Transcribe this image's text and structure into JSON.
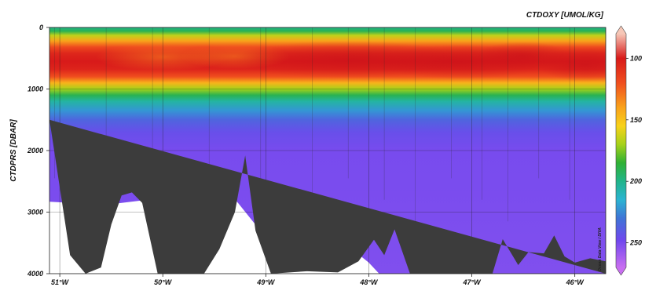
{
  "chart_data": {
    "type": "heatmap",
    "title": "",
    "ylabel": "CTDPRS [DBAR]",
    "xlabel": "",
    "colorbar_label": "CTDOXY [UMOL/KG]",
    "credit": "Ocean Data View / DIVA",
    "x_unit": "longitude (°W)",
    "xlim": [
      51.1,
      45.7
    ],
    "ylim": [
      4000,
      0
    ],
    "y_inverted": true,
    "grid": true,
    "x_ticks": [
      {
        "value": 51,
        "label": "51°W"
      },
      {
        "value": 50,
        "label": "50°W"
      },
      {
        "value": 49,
        "label": "49°W"
      },
      {
        "value": 48,
        "label": "48°W"
      },
      {
        "value": 47,
        "label": "47°W"
      },
      {
        "value": 46,
        "label": "46°W"
      }
    ],
    "y_ticks": [
      {
        "value": 0,
        "label": "0"
      },
      {
        "value": 1000,
        "label": "1000"
      },
      {
        "value": 2000,
        "label": "2000"
      },
      {
        "value": 3000,
        "label": "3000"
      },
      {
        "value": 4000,
        "label": "4000"
      }
    ],
    "colorbar_range": [
      80,
      270
    ],
    "colorbar_ticks": [
      {
        "value": 100,
        "label": "100"
      },
      {
        "value": 150,
        "label": "150"
      },
      {
        "value": 200,
        "label": "200"
      },
      {
        "value": 250,
        "label": "250"
      }
    ],
    "colormap": [
      {
        "value": 80,
        "color": "#f6c7b7"
      },
      {
        "value": 100,
        "color": "#d81a1a"
      },
      {
        "value": 120,
        "color": "#f04e1e"
      },
      {
        "value": 140,
        "color": "#f9a21b"
      },
      {
        "value": 155,
        "color": "#f8d21a"
      },
      {
        "value": 170,
        "color": "#a6d21a"
      },
      {
        "value": 185,
        "color": "#2fb134"
      },
      {
        "value": 200,
        "color": "#21b48a"
      },
      {
        "value": 215,
        "color": "#2bb4d2"
      },
      {
        "value": 230,
        "color": "#3f74d6"
      },
      {
        "value": 248,
        "color": "#7048ee"
      },
      {
        "value": 270,
        "color": "#c86ef0"
      }
    ],
    "oxygen_profile": [
      {
        "depth": 0,
        "value": 200
      },
      {
        "depth": 60,
        "value": 190
      },
      {
        "depth": 130,
        "value": 165
      },
      {
        "depth": 220,
        "value": 140
      },
      {
        "depth": 320,
        "value": 118
      },
      {
        "depth": 420,
        "value": 105
      },
      {
        "depth": 550,
        "value": 100
      },
      {
        "depth": 680,
        "value": 104
      },
      {
        "depth": 800,
        "value": 120
      },
      {
        "depth": 900,
        "value": 145
      },
      {
        "depth": 1000,
        "value": 170
      },
      {
        "depth": 1100,
        "value": 190
      },
      {
        "depth": 1200,
        "value": 205
      },
      {
        "depth": 1350,
        "value": 222
      },
      {
        "depth": 1500,
        "value": 236
      },
      {
        "depth": 1700,
        "value": 245
      },
      {
        "depth": 2000,
        "value": 250
      },
      {
        "depth": 4000,
        "value": 252
      }
    ],
    "station_longitudes": [
      51.05,
      50.55,
      50.1,
      49.55,
      49.05,
      48.55,
      48.2,
      47.85,
      47.55,
      47.2,
      46.9,
      46.65,
      46.35,
      46.05
    ],
    "no_data_region": [
      {
        "lon": 51.1,
        "depth": 2830
      },
      {
        "lon": 50.55,
        "depth": 2880
      },
      {
        "lon": 50.1,
        "depth": 2790
      },
      {
        "lon": 49.6,
        "depth": 2640
      },
      {
        "lon": 49.4,
        "depth": 2580
      },
      {
        "lon": 49.05,
        "depth": 3310
      },
      {
        "lon": 48.8,
        "depth": 3320
      },
      {
        "lon": 48.5,
        "depth": 3420
      },
      {
        "lon": 48.2,
        "depth": 3550
      },
      {
        "lon": 48.0,
        "depth": 3820
      },
      {
        "lon": 47.9,
        "depth": 4000
      },
      {
        "lon": 51.1,
        "depth": 4000
      }
    ],
    "bathymetry": [
      {
        "lon": 51.1,
        "depth": 1500
      },
      {
        "lon": 51.0,
        "depth": 2600
      },
      {
        "lon": 50.9,
        "depth": 3700
      },
      {
        "lon": 50.75,
        "depth": 4000
      },
      {
        "lon": 50.6,
        "depth": 3900
      },
      {
        "lon": 50.5,
        "depth": 3200
      },
      {
        "lon": 50.4,
        "depth": 2730
      },
      {
        "lon": 50.3,
        "depth": 2680
      },
      {
        "lon": 50.2,
        "depth": 2850
      },
      {
        "lon": 50.05,
        "depth": 4000
      },
      {
        "lon": 49.6,
        "depth": 4000
      },
      {
        "lon": 49.45,
        "depth": 3600
      },
      {
        "lon": 49.3,
        "depth": 3000
      },
      {
        "lon": 49.2,
        "depth": 2080
      },
      {
        "lon": 49.1,
        "depth": 3300
      },
      {
        "lon": 48.95,
        "depth": 4000
      },
      {
        "lon": 48.6,
        "depth": 3960
      },
      {
        "lon": 48.3,
        "depth": 3980
      },
      {
        "lon": 48.1,
        "depth": 3800
      },
      {
        "lon": 47.95,
        "depth": 3450
      },
      {
        "lon": 47.85,
        "depth": 3700
      },
      {
        "lon": 47.75,
        "depth": 3280
      },
      {
        "lon": 47.6,
        "depth": 4000
      },
      {
        "lon": 46.8,
        "depth": 4000
      },
      {
        "lon": 46.7,
        "depth": 3440
      },
      {
        "lon": 46.55,
        "depth": 3860
      },
      {
        "lon": 46.45,
        "depth": 3650
      },
      {
        "lon": 46.3,
        "depth": 3670
      },
      {
        "lon": 46.2,
        "depth": 3380
      },
      {
        "lon": 46.1,
        "depth": 3720
      },
      {
        "lon": 46.0,
        "depth": 3820
      },
      {
        "lon": 45.85,
        "depth": 3750
      },
      {
        "lon": 45.7,
        "depth": 3800
      },
      {
        "lon": 45.7,
        "depth": 4000
      }
    ]
  }
}
